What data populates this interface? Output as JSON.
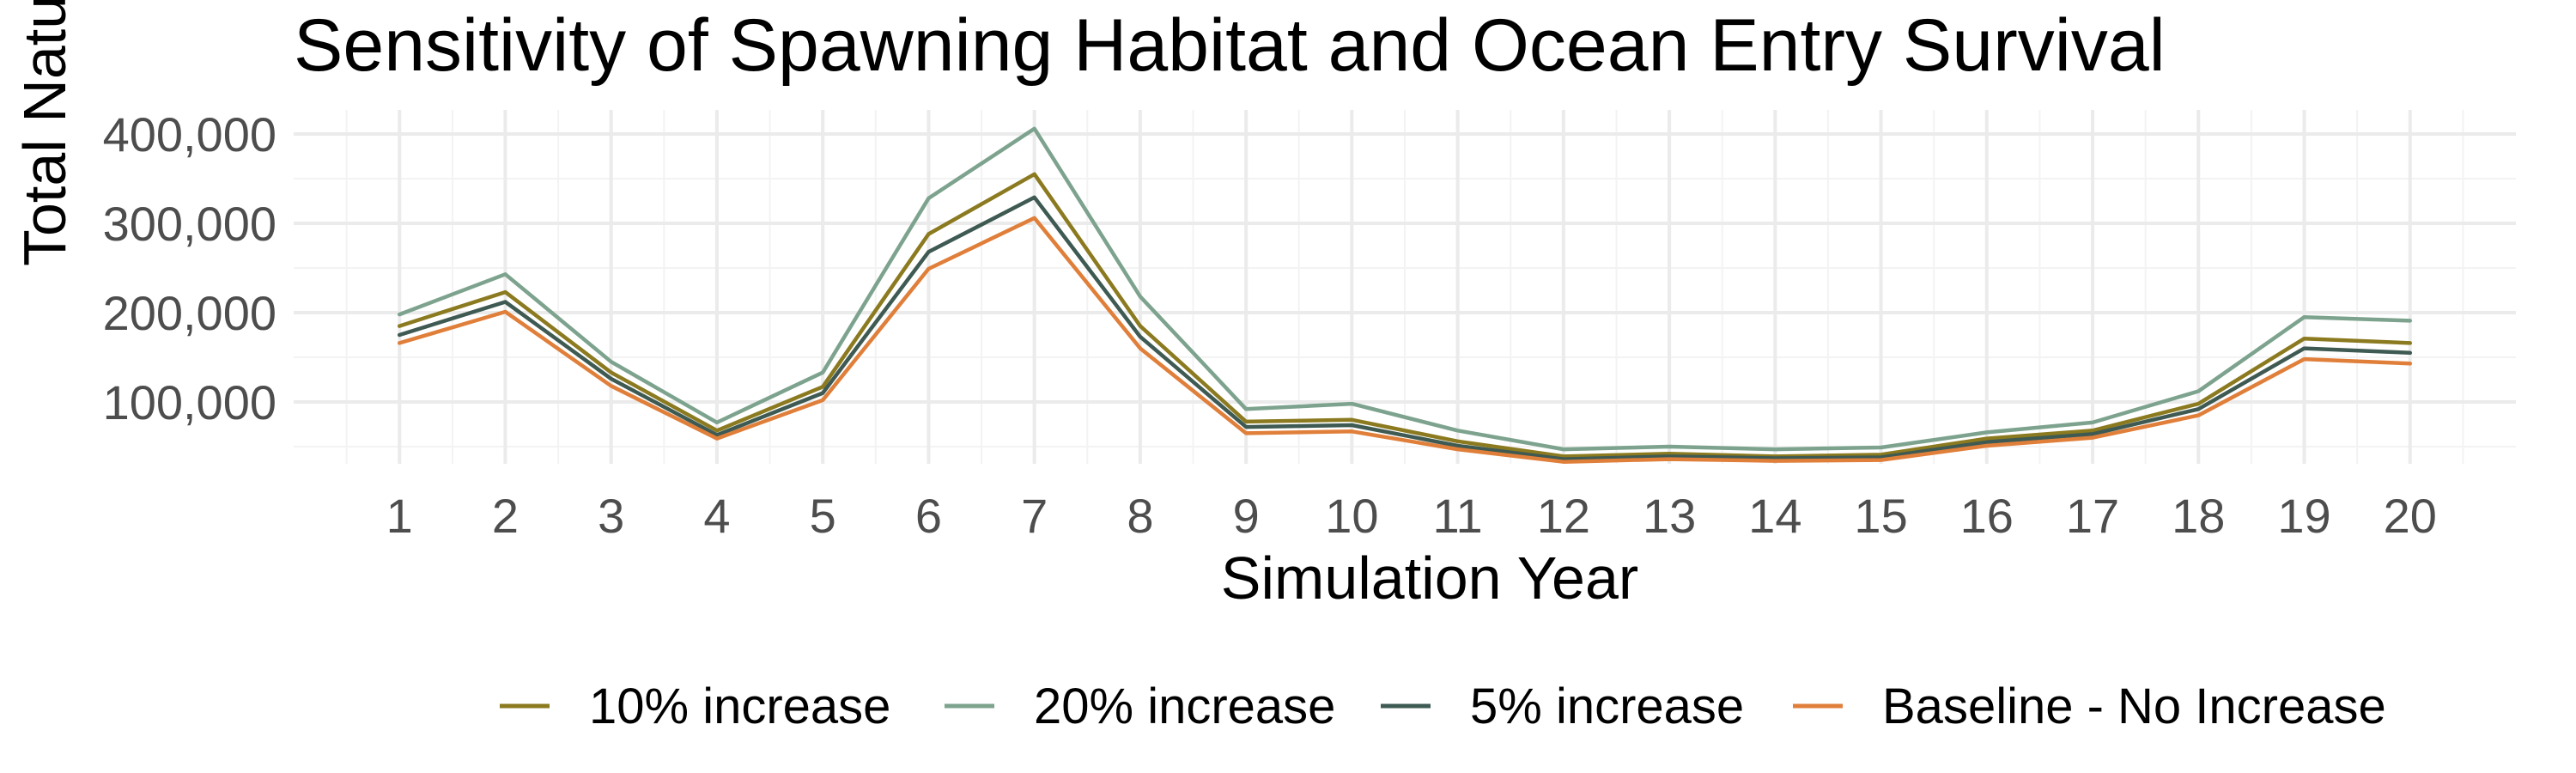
{
  "chart_data": {
    "type": "line",
    "title": "Sensitivity of Spawning Habitat and Ocean Entry Survival",
    "xlabel": "Simulation Year",
    "ylabel": "Total Natural Spawners",
    "x": [
      1,
      2,
      3,
      4,
      5,
      6,
      7,
      8,
      9,
      10,
      11,
      12,
      13,
      14,
      15,
      16,
      17,
      18,
      19,
      20
    ],
    "y_ticks": [
      100000,
      200000,
      300000,
      400000
    ],
    "y_tick_labels": [
      "100,000",
      "200,000",
      "300,000",
      "400,000"
    ],
    "x_tick_labels": [
      "1",
      "2",
      "3",
      "4",
      "5",
      "6",
      "7",
      "8",
      "9",
      "10",
      "11",
      "12",
      "13",
      "14",
      "15",
      "16",
      "17",
      "18",
      "19",
      "20"
    ],
    "ylim": [
      0,
      420000
    ],
    "grid": true,
    "legend_position": "bottom",
    "series": [
      {
        "name": "10% increase",
        "color": "#8b7a1f",
        "values": [
          185000,
          223000,
          133000,
          68000,
          117000,
          288000,
          355000,
          185000,
          78000,
          80000,
          56000,
          39000,
          42000,
          39000,
          41000,
          59000,
          68000,
          98000,
          171000,
          166000
        ]
      },
      {
        "name": "20% increase",
        "color": "#7da38e",
        "values": [
          198000,
          243000,
          145000,
          77000,
          133000,
          328000,
          406000,
          218000,
          92000,
          98000,
          68000,
          47000,
          50000,
          47000,
          49000,
          66000,
          77000,
          112000,
          195000,
          191000
        ]
      },
      {
        "name": "5% increase",
        "color": "#3e5a52",
        "values": [
          175000,
          212000,
          126000,
          63000,
          110000,
          268000,
          329000,
          173000,
          72000,
          74000,
          51000,
          36000,
          39000,
          37000,
          38000,
          55000,
          64000,
          92000,
          160000,
          155000
        ]
      },
      {
        "name": "Baseline - No Increase",
        "color": "#e07f3a",
        "values": [
          166000,
          201000,
          118000,
          59000,
          102000,
          249000,
          306000,
          160000,
          65000,
          67000,
          47000,
          33000,
          36000,
          34000,
          35000,
          51000,
          60000,
          85000,
          148000,
          143000
        ]
      }
    ]
  }
}
